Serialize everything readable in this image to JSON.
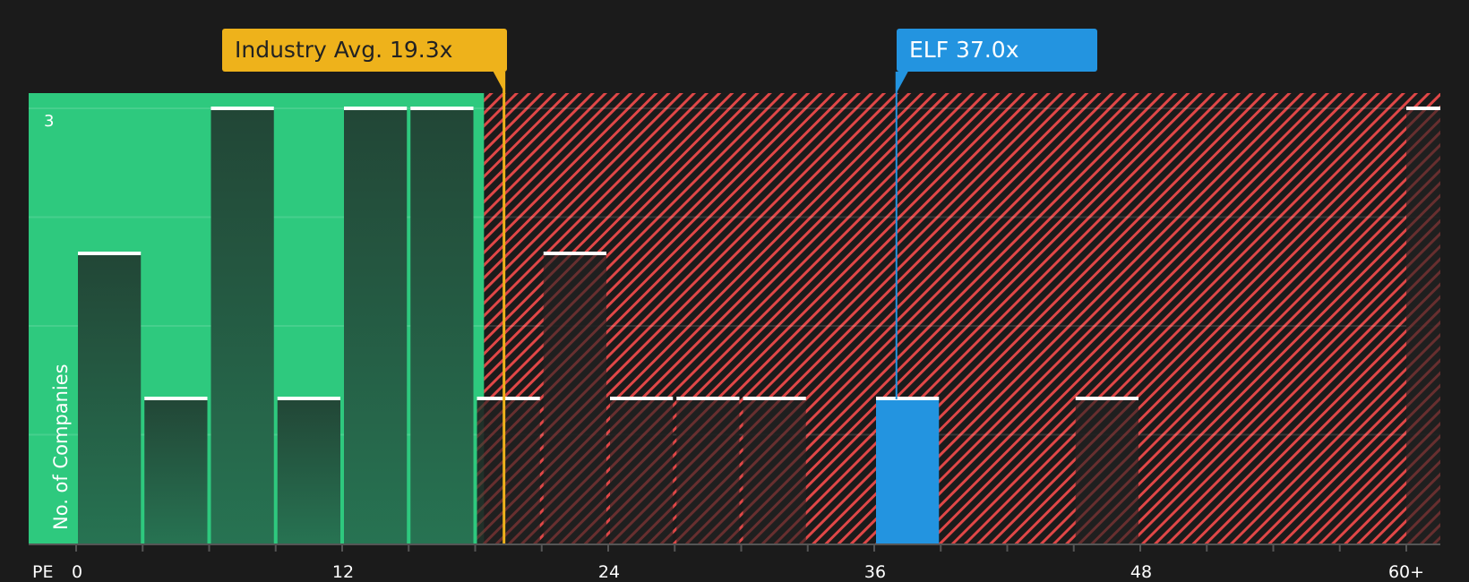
{
  "chart_data": {
    "type": "bar",
    "title": "",
    "xlabel": "PE",
    "ylabel": "No. of Companies",
    "x_tick_labels": [
      "0",
      "12",
      "24",
      "36",
      "48",
      "60+"
    ],
    "y_tick_labels": [
      "3"
    ],
    "ylim": [
      0,
      3
    ],
    "bin_width": 3,
    "categories": [
      "0-3",
      "3-6",
      "6-9",
      "9-12",
      "12-15",
      "15-18",
      "18-21",
      "21-24",
      "24-27",
      "27-30",
      "30-33",
      "33-36",
      "36-39",
      "39-42",
      "42-45",
      "45-48",
      "48-51",
      "51-54",
      "54-57",
      "57-60",
      "60+"
    ],
    "values": [
      2,
      1,
      3,
      1,
      3,
      3,
      1,
      2,
      1,
      1,
      1,
      0,
      1,
      0,
      0,
      1,
      0,
      0,
      0,
      0,
      3
    ],
    "highlight_bin": "36-39",
    "annotations": [
      {
        "label": "Industry Avg. 19.3x",
        "value": 19.3,
        "color": "#eeb21b"
      },
      {
        "label": "ELF 37.0x",
        "value": 37.0,
        "color": "#2394e0"
      }
    ],
    "regions": [
      {
        "name": "undervalued",
        "from": 0,
        "to": 18.4,
        "color": "#2ec97e"
      },
      {
        "name": "overvalued",
        "from": 18.4,
        "to": 61.5,
        "color": "#e04747",
        "pattern": "diagonal-hatch"
      }
    ],
    "grid": true,
    "legend": "none"
  },
  "labels": {
    "industry_callout": "Industry Avg. 19.3x",
    "elf_callout": "ELF 37.0x",
    "y_axis_title": "No. of Companies",
    "y_tick_top": "3",
    "x_axis_prefix": "PE",
    "x_ticks": [
      "0",
      "12",
      "24",
      "36",
      "48",
      "60+"
    ]
  },
  "colors": {
    "background": "#1b1b1b",
    "green_zone": "#2ec97e",
    "green_bar": "#234d3b",
    "red_hatch": "#e04747",
    "industry": "#eeb21b",
    "company": "#2394e0",
    "bar_cap": "#ffffff"
  }
}
